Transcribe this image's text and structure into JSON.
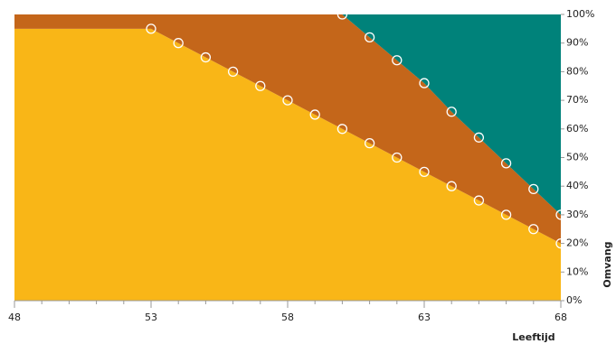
{
  "chart_data": {
    "type": "stacked_area",
    "x_label": "Leeftijd",
    "y_label": "Omvang",
    "x": [
      48,
      49,
      50,
      51,
      52,
      53,
      54,
      55,
      56,
      57,
      58,
      59,
      60,
      61,
      62,
      63,
      64,
      65,
      66,
      67,
      68
    ],
    "series": [
      {
        "color": "#f9b617",
        "values": [
          95,
          95,
          95,
          95,
          95,
          95,
          90,
          85,
          80,
          75,
          70,
          65,
          60,
          55,
          50,
          45,
          40,
          35,
          30,
          25,
          20
        ]
      },
      {
        "color": "#c4661a",
        "values": [
          5,
          5,
          5,
          5,
          5,
          5,
          10,
          15,
          20,
          25,
          30,
          35,
          40,
          37,
          34,
          31,
          26,
          22,
          18,
          14,
          10
        ]
      },
      {
        "color": "#00827a",
        "values": [
          0,
          0,
          0,
          0,
          0,
          0,
          0,
          0,
          0,
          0,
          0,
          0,
          0,
          8,
          16,
          24,
          34,
          43,
          52,
          61,
          70
        ]
      }
    ],
    "xlim": [
      48,
      68
    ],
    "xticks": [
      48,
      53,
      58,
      63,
      68
    ],
    "ylim": [
      0,
      100
    ],
    "yticks": [
      {
        "value": 0,
        "label": "0%"
      },
      {
        "value": 10,
        "label": "10%"
      },
      {
        "value": 20,
        "label": "20%"
      },
      {
        "value": 30,
        "label": "30%"
      },
      {
        "value": 40,
        "label": "40%"
      },
      {
        "value": 50,
        "label": "50%"
      },
      {
        "value": 60,
        "label": "60%"
      },
      {
        "value": 70,
        "label": "70%"
      },
      {
        "value": 80,
        "label": "80%"
      },
      {
        "value": 90,
        "label": "90%"
      },
      {
        "value": 100,
        "label": "100%"
      }
    ],
    "marker_color": "#ffffff"
  }
}
